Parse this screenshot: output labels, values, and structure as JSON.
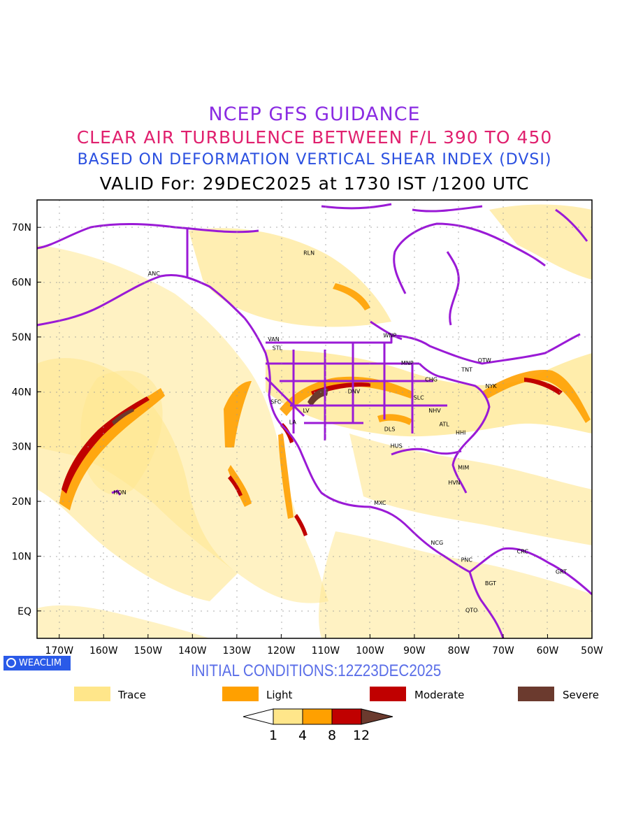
{
  "titles": {
    "line1": "NCEP GFS GUIDANCE",
    "line2": "CLEAR AIR TURBULENCE BETWEEN F/L 390 TO 450",
    "line3": "BASED ON DEFORMATION VERTICAL SHEAR INDEX (DVSI)",
    "line4": "VALID For: 29DEC2025 at 1730 IST /1200 UTC"
  },
  "initial_conditions": "INITIAL CONDITIONS:12Z23DEC2025",
  "badge": "WEACLIM",
  "map": {
    "lon_range": [
      -175,
      -50
    ],
    "lat_range": [
      -5,
      75
    ],
    "lon_ticks": [
      "170W",
      "160W",
      "150W",
      "140W",
      "130W",
      "120W",
      "110W",
      "100W",
      "90W",
      "80W",
      "70W",
      "60W",
      "50W"
    ],
    "lat_ticks": [
      "EQ",
      "10N",
      "20N",
      "30N",
      "40N",
      "50N",
      "60N",
      "70N"
    ],
    "stations": [
      {
        "code": "ANC",
        "lon": -150,
        "lat": 61.2
      },
      {
        "code": "RLN",
        "lon": -115,
        "lat": 65
      },
      {
        "code": "VAN",
        "lon": -123,
        "lat": 49.2
      },
      {
        "code": "STL",
        "lon": -122,
        "lat": 47.6
      },
      {
        "code": "WNP",
        "lon": -97,
        "lat": 49.9
      },
      {
        "code": "MNP",
        "lon": -93,
        "lat": 44.9
      },
      {
        "code": "OTW",
        "lon": -75.7,
        "lat": 45.4
      },
      {
        "code": "TNT",
        "lon": -79.4,
        "lat": 43.7
      },
      {
        "code": "CHG",
        "lon": -87.6,
        "lat": 41.9
      },
      {
        "code": "NYK",
        "lon": -74,
        "lat": 40.7
      },
      {
        "code": "DNV",
        "lon": -105,
        "lat": 39.7
      },
      {
        "code": "SLC",
        "lon": -90.2,
        "lat": 38.6
      },
      {
        "code": "SFC",
        "lon": -122.4,
        "lat": 37.8
      },
      {
        "code": "NHV",
        "lon": -86.8,
        "lat": 36.2
      },
      {
        "code": "ATL",
        "lon": -84.4,
        "lat": 33.7
      },
      {
        "code": "HHI",
        "lon": -80.7,
        "lat": 32.2
      },
      {
        "code": "DLS",
        "lon": -96.8,
        "lat": 32.8
      },
      {
        "code": "HUS",
        "lon": -95.4,
        "lat": 29.8
      },
      {
        "code": "LA",
        "lon": -118.2,
        "lat": 34.1
      },
      {
        "code": "LV",
        "lon": -115.1,
        "lat": 36.2
      },
      {
        "code": "MIM",
        "lon": -80.2,
        "lat": 25.8
      },
      {
        "code": "HVN",
        "lon": -82.4,
        "lat": 23.1
      },
      {
        "code": "HON",
        "lon": -157.8,
        "lat": 21.3
      },
      {
        "code": "MXC",
        "lon": -99.1,
        "lat": 19.4
      },
      {
        "code": "NCG",
        "lon": -86.3,
        "lat": 12.1
      },
      {
        "code": "PNC",
        "lon": -79.5,
        "lat": 9.0
      },
      {
        "code": "CRC",
        "lon": -66.9,
        "lat": 10.5
      },
      {
        "code": "GRT",
        "lon": -58.2,
        "lat": 6.8
      },
      {
        "code": "BGT",
        "lon": -74.1,
        "lat": 4.7
      },
      {
        "code": "QTO",
        "lon": -78.5,
        "lat": -0.2
      }
    ]
  },
  "legend": {
    "items": [
      {
        "label": "Trace",
        "color": "#ffe68a"
      },
      {
        "label": "Light",
        "color": "#ffa000"
      },
      {
        "label": "Moderate",
        "color": "#c00000"
      },
      {
        "label": "Severe",
        "color": "#6b3a2e"
      }
    ],
    "colorbar_ticks": [
      "1",
      "4",
      "8",
      "12"
    ]
  },
  "colors": {
    "boundary": "#9a1ad6",
    "trace": "#ffe68a",
    "light": "#ffa000",
    "moderate": "#c00000",
    "severe": "#6b3a2e"
  }
}
